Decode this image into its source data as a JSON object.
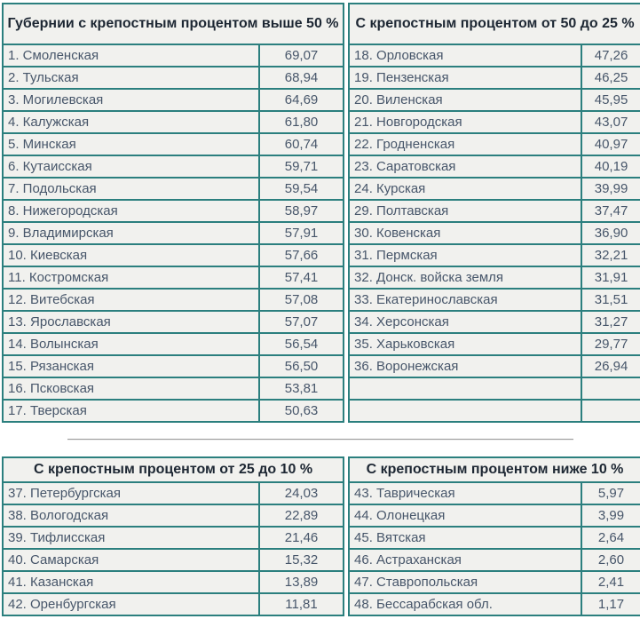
{
  "page": {
    "description": "Statistical table of Russian governorates grouped by percentage of serfs",
    "background_color": "#ffffff",
    "border_color": "#2b7f7e",
    "cell_background": "#f1f1ee",
    "row_text_color": "#47566a",
    "header_text_color": "#1d2733",
    "divider_color": "#9c9c9c"
  },
  "tables": [
    {
      "id": "above-50",
      "header": "Губернии с крепостным процентом выше 50 %",
      "rows": [
        {
          "name": "1. Смоленская",
          "value": "69,07"
        },
        {
          "name": "2. Тульская",
          "value": "68,94"
        },
        {
          "name": "3. Могилевская",
          "value": "64,69"
        },
        {
          "name": "4. Калужская",
          "value": "61,80"
        },
        {
          "name": "5. Минская",
          "value": "60,74"
        },
        {
          "name": "6. Кутаисская",
          "value": "59,71"
        },
        {
          "name": "7. Подольская",
          "value": "59,54"
        },
        {
          "name": "8. Нижегородская",
          "value": "58,97"
        },
        {
          "name": "9. Владимирская",
          "value": "57,91"
        },
        {
          "name": "10. Киевская",
          "value": "57,66"
        },
        {
          "name": "11. Костромская",
          "value": "57,41"
        },
        {
          "name": "12. Витебская",
          "value": "57,08"
        },
        {
          "name": "13. Ярославская",
          "value": "57,07"
        },
        {
          "name": "14. Волынская",
          "value": "56,54"
        },
        {
          "name": "15. Рязанская",
          "value": "56,50"
        },
        {
          "name": "16. Псковская",
          "value": "53,81"
        },
        {
          "name": "17. Тверская",
          "value": "50,63"
        }
      ]
    },
    {
      "id": "from-50-to-25",
      "header": "С крепостным процентом от 50 до 25 %",
      "rows": [
        {
          "name": "18. Орловская",
          "value": "47,26"
        },
        {
          "name": "19. Пензенская",
          "value": "46,25"
        },
        {
          "name": "20. Виленская",
          "value": "45,95"
        },
        {
          "name": "21. Новгородская",
          "value": "43,07"
        },
        {
          "name": "22. Гродненская",
          "value": "40,97"
        },
        {
          "name": "23. Саратовская",
          "value": "40,19"
        },
        {
          "name": "24. Курская",
          "value": "39,99"
        },
        {
          "name": "29. Полтавская",
          "value": "37,47"
        },
        {
          "name": "30. Ковенская",
          "value": "36,90"
        },
        {
          "name": "31. Пермская",
          "value": "32,21"
        },
        {
          "name": "32. Донск. войска земля",
          "value": "31,91"
        },
        {
          "name": "33. Екатеринославская",
          "value": "31,51"
        },
        {
          "name": "34. Херсонская",
          "value": "31,27"
        },
        {
          "name": "35. Харьковская",
          "value": "29,77"
        },
        {
          "name": "36. Воронежская",
          "value": "26,94"
        },
        {
          "name": "",
          "value": ""
        },
        {
          "name": "",
          "value": ""
        }
      ]
    },
    {
      "id": "from-25-to-10",
      "header": "С крепостным процентом от 25 до 10 %",
      "rows": [
        {
          "name": "37. Петербургская",
          "value": "24,03"
        },
        {
          "name": "38. Вологодская",
          "value": "22,89"
        },
        {
          "name": "39. Тифлисская",
          "value": "21,46"
        },
        {
          "name": "40. Самарская",
          "value": "15,32"
        },
        {
          "name": "41. Казанская",
          "value": "13,89"
        },
        {
          "name": "42. Оренбургская",
          "value": "11,81"
        }
      ]
    },
    {
      "id": "below-10",
      "header": "С крепостным процентом ниже 10 %",
      "rows": [
        {
          "name": "43. Таврическая",
          "value": "5,97"
        },
        {
          "name": "44. Олонецкая",
          "value": "3,99"
        },
        {
          "name": "45. Вятская",
          "value": "2,64"
        },
        {
          "name": "46. Астраханская",
          "value": "2,60"
        },
        {
          "name": "47. Ставропольская",
          "value": "2,41"
        },
        {
          "name": "48. Бессарабская обл.",
          "value": "1,17"
        }
      ]
    }
  ]
}
